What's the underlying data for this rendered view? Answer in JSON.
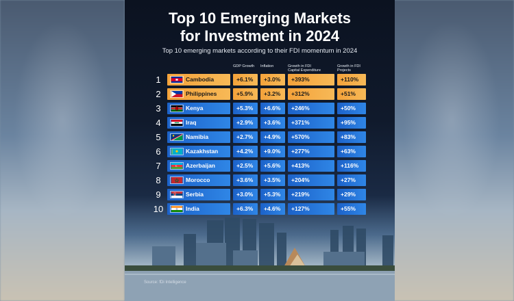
{
  "title_line1": "Top 10 Emerging Markets",
  "title_line2": "for Investment in 2024",
  "subtitle": "Top 10 emerging markets according to their FDI momentum in 2024",
  "columns": {
    "gdp": "GDP Growth",
    "inflation": "Inflation",
    "capex_l1": "Growth in FDI",
    "capex_l2": "Capital Expenditure",
    "projects_l1": "Growth in FDI",
    "projects_l2": "Projects"
  },
  "source": "Source: fDi Intelligence",
  "colors": {
    "highlight": "#f4a23a",
    "row": "#2a7ae0",
    "background": "#0b1220"
  },
  "chart_data": {
    "type": "table",
    "title": "Top 10 Emerging Markets for Investment in 2024",
    "subtitle": "Top 10 emerging markets according to their FDI momentum in 2024",
    "columns": [
      "GDP Growth",
      "Inflation",
      "Growth in FDI Capital Expenditure",
      "Growth in FDI Projects"
    ],
    "rows": [
      {
        "rank": "1",
        "country": "Cambodia",
        "flag": "cambodia-flag",
        "highlight": true,
        "gdp": "+6.1%",
        "inflation": "+3.0%",
        "capex": "+393%",
        "projects": "+110%"
      },
      {
        "rank": "2",
        "country": "Philippines",
        "flag": "philippines-flag",
        "highlight": true,
        "gdp": "+5.9%",
        "inflation": "+3.2%",
        "capex": "+312%",
        "projects": "+51%"
      },
      {
        "rank": "3",
        "country": "Kenya",
        "flag": "kenya-flag",
        "highlight": false,
        "gdp": "+5.3%",
        "inflation": "+6.6%",
        "capex": "+246%",
        "projects": "+50%"
      },
      {
        "rank": "4",
        "country": "Iraq",
        "flag": "iraq-flag",
        "highlight": false,
        "gdp": "+2.9%",
        "inflation": "+3.6%",
        "capex": "+371%",
        "projects": "+95%"
      },
      {
        "rank": "5",
        "country": "Namibia",
        "flag": "namibia-flag",
        "highlight": false,
        "gdp": "+2.7%",
        "inflation": "+4.9%",
        "capex": "+570%",
        "projects": "+83%"
      },
      {
        "rank": "6",
        "country": "Kazakhstan",
        "flag": "kazakhstan-flag",
        "highlight": false,
        "gdp": "+4.2%",
        "inflation": "+9.0%",
        "capex": "+277%",
        "projects": "+63%"
      },
      {
        "rank": "7",
        "country": "Azerbaijan",
        "flag": "azerbaijan-flag",
        "highlight": false,
        "gdp": "+2.5%",
        "inflation": "+5.6%",
        "capex": "+413%",
        "projects": "+116%"
      },
      {
        "rank": "8",
        "country": "Morocco",
        "flag": "morocco-flag",
        "highlight": false,
        "gdp": "+3.6%",
        "inflation": "+3.5%",
        "capex": "+204%",
        "projects": "+27%"
      },
      {
        "rank": "9",
        "country": "Serbia",
        "flag": "serbia-flag",
        "highlight": false,
        "gdp": "+3.0%",
        "inflation": "+5.3%",
        "capex": "+219%",
        "projects": "+29%"
      },
      {
        "rank": "10",
        "country": "India",
        "flag": "india-flag",
        "highlight": false,
        "gdp": "+6.3%",
        "inflation": "+4.6%",
        "capex": "+127%",
        "projects": "+55%"
      }
    ]
  }
}
